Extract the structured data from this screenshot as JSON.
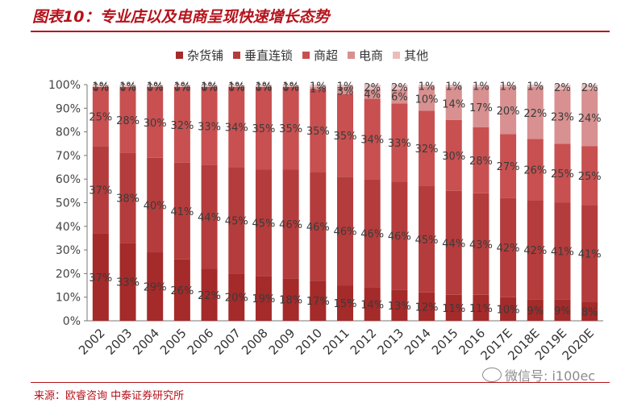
{
  "header": {
    "title": "图表10：专业店以及电商呈现快速增长态势"
  },
  "footer": {
    "source": "来源：欧睿咨询 中泰证券研究所",
    "watermark": "微信号: i100ec"
  },
  "chart_data": {
    "type": "bar",
    "stacked": true,
    "percent_stacked": true,
    "categories": [
      "2002",
      "2003",
      "2004",
      "2005",
      "2006",
      "2007",
      "2008",
      "2009",
      "2010",
      "2011",
      "2012",
      "2013",
      "2014",
      "2015",
      "2016",
      "2017E",
      "2018E",
      "2019E",
      "2020E"
    ],
    "series": [
      {
        "name": "杂货铺",
        "color": "#a52a2a",
        "values": [
          37,
          33,
          29,
          26,
          22,
          20,
          19,
          18,
          17,
          15,
          14,
          13,
          12,
          11,
          11,
          10,
          9,
          9,
          8
        ]
      },
      {
        "name": "垂直连锁",
        "color": "#b53c3c",
        "values": [
          37,
          38,
          40,
          41,
          44,
          45,
          45,
          46,
          46,
          46,
          46,
          46,
          45,
          44,
          43,
          42,
          42,
          41,
          41
        ]
      },
      {
        "name": "商超",
        "color": "#c85050",
        "values": [
          25,
          28,
          30,
          32,
          33,
          34,
          35,
          35,
          35,
          35,
          34,
          33,
          32,
          30,
          28,
          27,
          26,
          25,
          25
        ]
      },
      {
        "name": "电商",
        "color": "#d89090",
        "values": [
          0,
          0,
          0,
          0,
          0,
          0,
          0,
          0,
          1,
          3,
          4,
          6,
          10,
          14,
          17,
          20,
          22,
          23,
          24
        ]
      },
      {
        "name": "其他",
        "color": "#ebbcbc",
        "values": [
          1,
          1,
          1,
          1,
          1,
          1,
          1,
          1,
          1,
          1,
          2,
          2,
          1,
          1,
          1,
          1,
          1,
          2,
          2
        ]
      }
    ],
    "ylim": [
      0,
      100
    ],
    "yticks": [
      "0%",
      "10%",
      "20%",
      "30%",
      "40%",
      "50%",
      "60%",
      "70%",
      "80%",
      "90%",
      "100%"
    ],
    "legend_position": "top",
    "xlabel": "",
    "ylabel": ""
  }
}
